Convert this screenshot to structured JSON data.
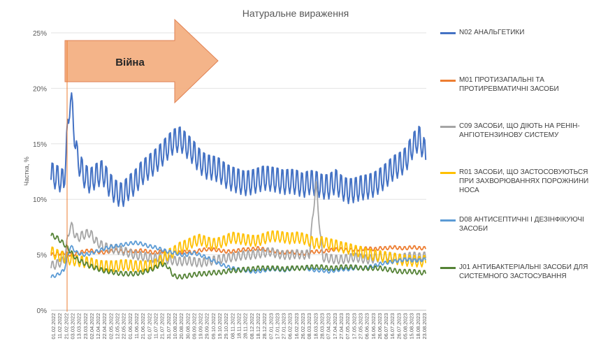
{
  "chart_data": {
    "type": "line",
    "title": "Натуральне вираження",
    "ylabel": "Частка, %",
    "xlabel": "",
    "ylim": [
      0,
      25
    ],
    "yticks": [
      "0%",
      "5%",
      "10%",
      "15%",
      "20%",
      "25%"
    ],
    "grid": true,
    "legend_position": "right",
    "x_tick_labels": [
      "01.02.2022",
      "11.02.2022",
      "21.02.2022",
      "03.03.2022",
      "13.03.2022",
      "23.03.2022",
      "02.04.2022",
      "12.04.2022",
      "22.04.2022",
      "02.05.2022",
      "12.05.2022",
      "22.05.2022",
      "01.06.2022",
      "11.06.2022",
      "21.06.2022",
      "01.07.2022",
      "11.07.2022",
      "21.07.2022",
      "31.07.2022",
      "10.08.2022",
      "20.08.2022",
      "30.08.2022",
      "09.09.2022",
      "19.09.2022",
      "29.09.2022",
      "09.10.2022",
      "19.10.2022",
      "29.10.2022",
      "08.11.2022",
      "18.11.2022",
      "28.11.2022",
      "08.12.2022",
      "18.12.2022",
      "28.12.2022",
      "07.01.2023",
      "17.01.2023",
      "27.01.2023",
      "06.02.2023",
      "16.02.2023",
      "26.02.2023",
      "08.03.2023",
      "18.03.2023",
      "28.03.2023",
      "07.04.2023",
      "17.04.2023",
      "27.04.2023",
      "07.05.2023",
      "17.05.2023",
      "27.05.2023",
      "06.06.2023",
      "16.06.2023",
      "26.06.2023",
      "06.07.2023",
      "16.07.2023",
      "26.07.2023",
      "05.08.2023",
      "15.08.2023",
      "18.08.2023",
      "23.08.2023"
    ],
    "annotation": {
      "label": "Війна",
      "date": "24.02.2022"
    },
    "series": [
      {
        "name": "N02 АНАЛЬГЕТИКИ",
        "color": "#4472C4",
        "base": [
          12.2,
          11.9,
          11.5,
          19.5,
          13.8,
          12.2,
          11.6,
          12.1,
          12.4,
          11.3,
          10.6,
          10.3,
          11.0,
          11.5,
          12.3,
          12.8,
          13.3,
          13.9,
          14.6,
          15.2,
          15.4,
          14.8,
          14.2,
          13.4,
          12.9,
          12.8,
          12.6,
          12.1,
          11.8,
          11.6,
          11.4,
          11.5,
          11.7,
          11.9,
          11.8,
          11.7,
          11.5,
          11.6,
          11.5,
          11.2,
          11.5,
          11.4,
          11.1,
          11.1,
          11.6,
          11.0,
          10.7,
          10.8,
          11.0,
          11.1,
          11.3,
          11.7,
          12.2,
          12.8,
          13.1,
          13.6,
          14.8,
          15.5,
          14.0
        ],
        "amp": 1.8
      },
      {
        "name": "M01 ПРОТИЗАПАЛЬНІ ТА ПРОТИРЕВМАТИЧНІ ЗАСОБИ",
        "color": "#ED7D31",
        "base": [
          5.0,
          5.1,
          5.2,
          5.0,
          5.1,
          5.3,
          5.4,
          5.3,
          5.2,
          5.3,
          5.4,
          5.3,
          5.4,
          5.3,
          5.4,
          5.3,
          5.2,
          5.3,
          5.3,
          5.2,
          5.2,
          5.3,
          5.2,
          5.4,
          5.5,
          5.5,
          5.4,
          5.3,
          5.3,
          5.4,
          5.5,
          5.5,
          5.6,
          5.5,
          5.4,
          5.3,
          5.2,
          5.3,
          5.2,
          5.1,
          5.2,
          5.3,
          5.3,
          5.4,
          5.5,
          5.5,
          5.4,
          5.5,
          5.5,
          5.6,
          5.5,
          5.6,
          5.6,
          5.7,
          5.6,
          5.6,
          5.7,
          5.6,
          5.6
        ],
        "amp": 0.3
      },
      {
        "name": "C09 ЗАСОБИ, ЩО ДІЮТЬ НА РЕНІН-АНГІОТЕНЗИНОВУ СИСТЕМУ",
        "color": "#A5A5A5",
        "base": [
          4.0,
          4.2,
          4.5,
          7.8,
          6.5,
          6.8,
          7.0,
          6.2,
          5.8,
          5.6,
          5.5,
          5.4,
          5.2,
          5.0,
          4.9,
          4.8,
          4.7,
          4.9,
          4.6,
          4.5,
          4.4,
          4.5,
          4.4,
          4.3,
          4.4,
          4.5,
          4.6,
          4.7,
          4.8,
          4.9,
          5.0,
          5.0,
          5.1,
          5.2,
          5.3,
          5.1,
          5.0,
          5.0,
          5.1,
          5.0,
          5.1,
          11.5,
          4.8,
          4.7,
          4.6,
          4.6,
          4.7,
          4.8,
          4.7,
          4.6,
          4.7,
          4.8,
          4.9,
          4.8,
          4.7,
          4.8,
          4.9,
          4.8,
          4.9
        ],
        "amp": 0.8
      },
      {
        "name": "R01 ЗАСОБИ, ЩО ЗАСТОСОВУЮТЬСЯ ПРИ ЗАХВОРЮВАННЯХ ПОРОЖНИНИ НОСА",
        "color": "#FFC000",
        "base": [
          5.3,
          5.0,
          4.8,
          4.6,
          4.5,
          4.4,
          4.3,
          4.1,
          4.0,
          4.0,
          4.0,
          4.1,
          4.1,
          4.0,
          4.0,
          4.0,
          4.1,
          4.5,
          5.0,
          5.3,
          5.7,
          5.9,
          6.2,
          6.4,
          6.2,
          6.0,
          6.1,
          6.3,
          6.6,
          6.5,
          6.4,
          6.3,
          6.3,
          6.5,
          6.7,
          6.7,
          6.6,
          6.5,
          6.6,
          6.5,
          6.3,
          6.0,
          6.2,
          6.0,
          5.9,
          5.7,
          5.6,
          5.4,
          5.3,
          5.1,
          5.0,
          4.9,
          4.8,
          4.7,
          4.6,
          4.5,
          4.5,
          4.4,
          4.5
        ],
        "amp": 1.0
      },
      {
        "name": "D08 АНТИСЕПТИЧНІ І ДЕЗІНФІКУЮЧІ ЗАСОБИ",
        "color": "#5B9BD5",
        "base": [
          3.0,
          3.2,
          3.6,
          5.8,
          5.2,
          5.0,
          5.1,
          5.3,
          5.5,
          5.7,
          5.8,
          5.9,
          6.0,
          6.1,
          6.0,
          5.8,
          5.7,
          5.5,
          5.3,
          5.2,
          5.0,
          5.0,
          5.2,
          5.0,
          4.8,
          4.5,
          4.2,
          4.0,
          3.8,
          3.7,
          3.6,
          3.5,
          3.5,
          3.6,
          3.7,
          3.7,
          3.6,
          3.7,
          3.8,
          3.8,
          3.7,
          3.6,
          3.6,
          3.5,
          3.6,
          3.7,
          3.7,
          3.8,
          3.8,
          3.9,
          4.0,
          4.2,
          4.3,
          4.4,
          4.5,
          4.6,
          4.5,
          4.5,
          4.6
        ],
        "amp": 0.3
      },
      {
        "name": "J01 АНТИБАКТЕРІАЛЬНІ ЗАСОБИ ДЛЯ СИСТЕМНОГО ЗАСТОСУВАННЯ",
        "color": "#548235",
        "base": [
          6.8,
          6.5,
          6.0,
          5.3,
          4.6,
          4.3,
          4.0,
          3.8,
          3.6,
          3.5,
          3.4,
          3.3,
          3.3,
          3.3,
          3.4,
          3.6,
          3.8,
          4.2,
          4.0,
          3.1,
          3.0,
          3.1,
          3.2,
          3.3,
          3.3,
          3.4,
          3.4,
          3.5,
          3.6,
          3.6,
          3.7,
          3.7,
          3.8,
          3.8,
          3.8,
          3.8,
          3.7,
          3.8,
          3.8,
          3.8,
          3.9,
          3.9,
          3.9,
          3.8,
          3.8,
          3.9,
          3.9,
          3.9,
          3.8,
          3.8,
          3.8,
          3.8,
          3.7,
          3.6,
          3.5,
          3.5,
          3.5,
          3.4,
          3.4
        ],
        "amp": 0.4
      }
    ]
  }
}
